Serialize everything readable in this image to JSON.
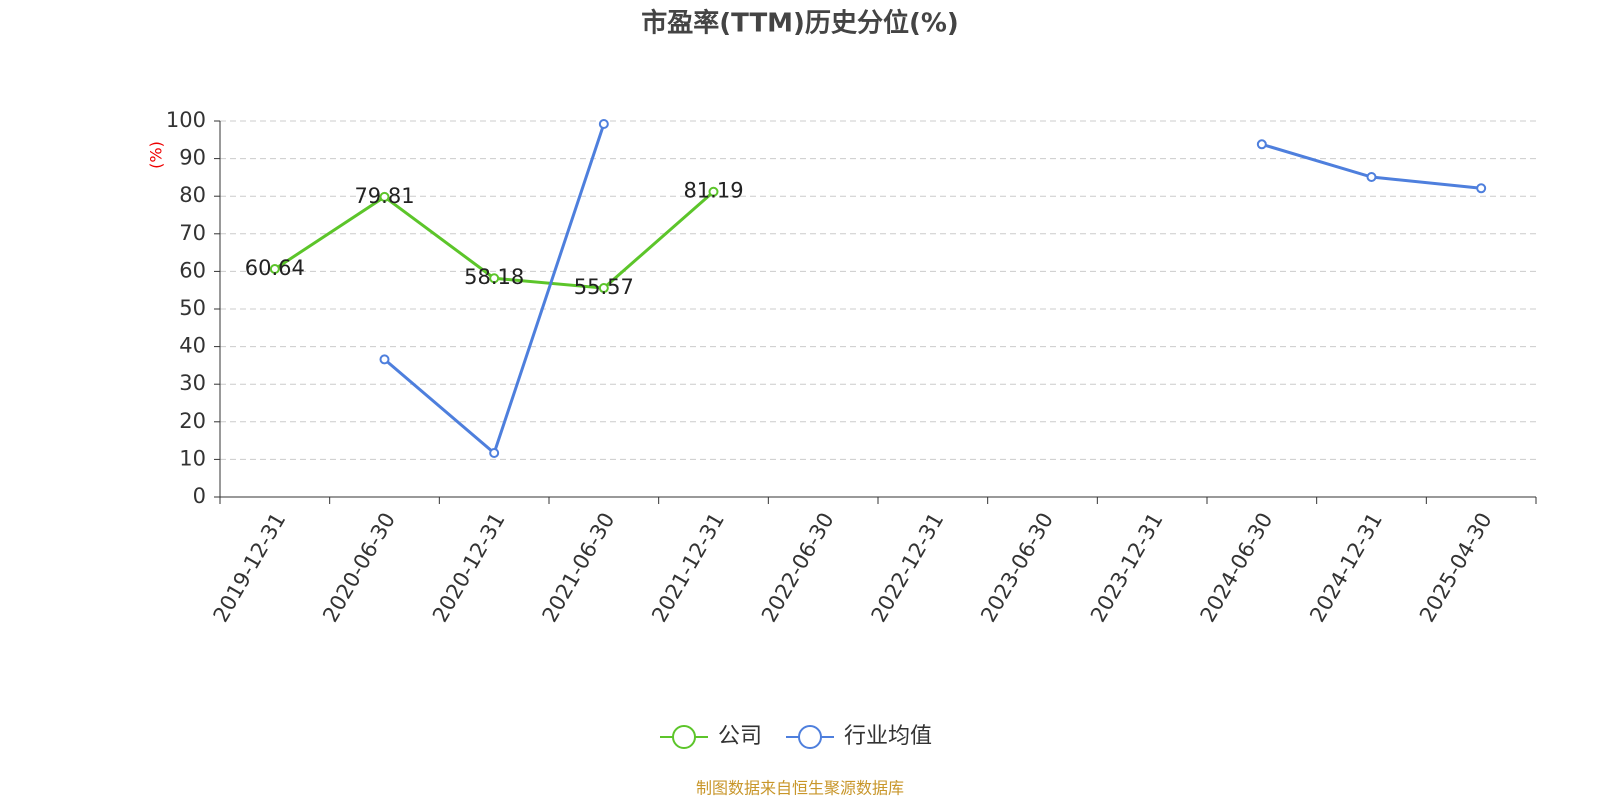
{
  "chart_data": {
    "type": "line",
    "title": "市盈率(TTM)历史分位(%)",
    "y_label": "(%)",
    "source": "制图数据来自恒生聚源数据库",
    "categories": [
      "2019-12-31",
      "2020-06-30",
      "2020-12-31",
      "2021-06-30",
      "2021-12-31",
      "2022-06-30",
      "2022-12-31",
      "2023-06-30",
      "2023-12-31",
      "2024-06-30",
      "2024-12-31",
      "2025-04-30"
    ],
    "series": [
      {
        "name": "公司",
        "color": "#5cc52a",
        "show_labels": true,
        "values": [
          60.64,
          79.81,
          58.18,
          55.57,
          81.19,
          null,
          null,
          null,
          null,
          null,
          null,
          null
        ]
      },
      {
        "name": "行业均值",
        "color": "#4e7fdd",
        "show_labels": false,
        "values": [
          null,
          36.6,
          11.7,
          99.2,
          null,
          null,
          null,
          null,
          null,
          93.8,
          85.1,
          82.1
        ]
      }
    ],
    "ylim": [
      0,
      100
    ],
    "yticks": [
      0,
      10,
      20,
      30,
      40,
      50,
      60,
      70,
      80,
      90,
      100
    ],
    "grid": true
  }
}
